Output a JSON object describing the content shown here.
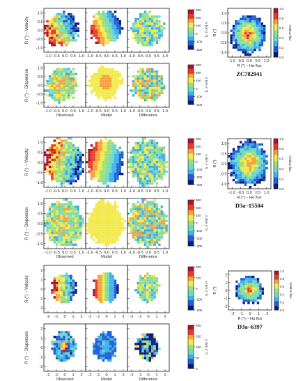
{
  "colors": {
    "map_scale": [
      "#0d1a7a",
      "#1f5fd6",
      "#3fb0e8",
      "#6fd9c8",
      "#9be07a",
      "#f2e94e",
      "#f7a23a",
      "#e53d2a",
      "#b4102a"
    ],
    "panel_border": "#111111",
    "background": "#ffffff"
  },
  "column_labels": [
    "Observed",
    "Model",
    "Difference"
  ],
  "row_labels": {
    "velocity": "R (\") – Velocity",
    "dispersion": "R (\") – Dispersion"
  },
  "halpha_axes": {
    "xlabel": "R (\") – Hα flux",
    "ylabel": "R (\")",
    "cbar_label": "relative flux"
  },
  "galaxies": [
    {
      "name": "ZC782941",
      "model_x_ticks": [
        "-1.0",
        "-0.5",
        "0.0",
        "0.5",
        "1.0"
      ],
      "model_y_ticks": [
        "1.0",
        "0.5",
        "0.0",
        "-0.5",
        "-1.0"
      ],
      "velocity_cbar": {
        "label": "v (km s⁻¹)",
        "ticks": [
          "300",
          "200",
          "100",
          "0",
          "-100",
          "-200"
        ]
      },
      "dispersion_cbar": {
        "label": "σ (km s⁻¹)",
        "ticks": [
          "300",
          "200",
          "100",
          "0",
          "-100",
          "-200"
        ]
      },
      "halpha_x_ticks": [
        "-1.0",
        "-0.5",
        "0.0",
        "0.5",
        "1.0"
      ],
      "halpha_y_ticks": [
        "1.0",
        "0.5",
        "0.0",
        "-0.5",
        "-1.0"
      ],
      "halpha_cbar_ticks": [
        "1.0",
        "0.8",
        "0.6",
        "0.4",
        "0.2",
        "0.0"
      ]
    },
    {
      "name": "D3a–15504",
      "model_x_ticks": [
        "-1.0",
        "-0.5",
        "0.0",
        "0.5",
        "1.0"
      ],
      "model_y_ticks": [
        "1.0",
        "0.5",
        "0.0",
        "-0.5",
        "-1.0"
      ],
      "velocity_cbar": {
        "label": "v (km s⁻¹)",
        "ticks": [
          "300",
          "200",
          "100",
          "0",
          "-100",
          "-200",
          "-300"
        ]
      },
      "dispersion_cbar": {
        "label": "σ (km s⁻¹)",
        "ticks": [
          "300",
          "200",
          "100",
          "0",
          "-100",
          "-200",
          "-300"
        ]
      },
      "halpha_x_ticks": [
        "-1.0",
        "-0.5",
        "0.0",
        "0.5",
        "1.0"
      ],
      "halpha_y_ticks": [
        "1.0",
        "0.5",
        "0.0",
        "-0.5",
        "-1.0"
      ],
      "halpha_cbar_ticks": [
        "1.0",
        "0.8",
        "0.6",
        "0.4",
        "0.2",
        "0.0"
      ]
    },
    {
      "name": "D3a–6397",
      "model_x_ticks": [
        "-2",
        "-1",
        "0",
        "1",
        "2"
      ],
      "model_y_ticks": [
        "2",
        "1",
        "0",
        "-1",
        "-2"
      ],
      "velocity_cbar": {
        "label": "v (km s⁻¹)",
        "ticks": [
          "200",
          "100",
          "0",
          "-100",
          "-200"
        ]
      },
      "dispersion_cbar": {
        "label": "σ (km s⁻¹)",
        "ticks": [
          "200",
          "150",
          "100",
          "50",
          "0"
        ]
      },
      "halpha_x_ticks": [
        "-2",
        "-1",
        "0",
        "1",
        "2"
      ],
      "halpha_y_ticks": [
        "2",
        "1",
        "0",
        "-1",
        "-2"
      ],
      "halpha_cbar_ticks": [
        "1.0",
        "0.8",
        "0.6",
        "0.4",
        "0.2",
        "0.0"
      ]
    }
  ]
}
